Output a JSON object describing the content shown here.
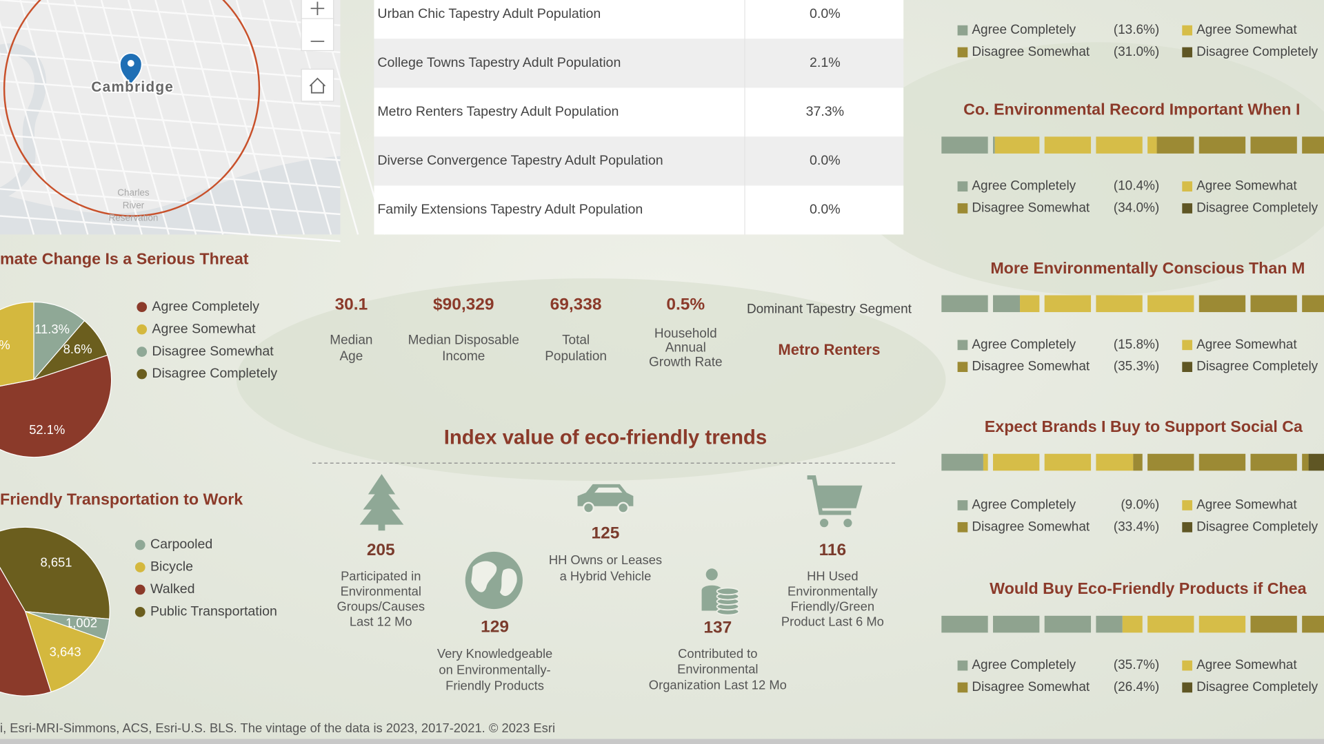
{
  "map": {
    "place_label": "Cambridge",
    "park_label": [
      "Charles",
      "River",
      "Reservation"
    ]
  },
  "table": {
    "rows": [
      [
        "Urban Chic Tapestry Adult Population",
        "0.0%"
      ],
      [
        "College Towns Tapestry Adult Population",
        "2.1%"
      ],
      [
        "Metro Renters Tapestry Adult Population",
        "37.3%"
      ],
      [
        "Diverse Convergence Tapestry Adult Population",
        "0.0%"
      ],
      [
        "Family Extensions Tapestry Adult Population",
        "0.0%"
      ]
    ]
  },
  "pies": [
    {
      "title": "mate Change Is a Serious Threat",
      "series": [
        {
          "name": "Agree Completely",
          "color": "#8b3a2a"
        },
        {
          "name": "Agree Somewhat",
          "color": "#d4b83e"
        },
        {
          "name": "Disagree Somewhat",
          "color": "#8fa896"
        },
        {
          "name": "Disagree Completely",
          "color": "#6b5e1e"
        }
      ],
      "values": [
        52.1,
        28.0,
        11.3,
        8.6
      ],
      "value_labels": [
        "52.1%",
        "%",
        "11.3%",
        "8.6%"
      ]
    },
    {
      "title": "Friendly Transportation to Work",
      "series": [
        {
          "name": "Carpooled",
          "color": "#8fa896"
        },
        {
          "name": "Bicycle",
          "color": "#d4b83e"
        },
        {
          "name": "Walked",
          "color": "#8b3a2a"
        },
        {
          "name": "Public Transportation",
          "color": "#6b5e1e"
        }
      ],
      "values": [
        1002,
        3643,
        11600,
        8651
      ],
      "value_labels": [
        "1,002",
        "3,643",
        null,
        "8,651"
      ]
    }
  ],
  "stats": [
    {
      "value": "30.1",
      "label": [
        "Median",
        "Age"
      ]
    },
    {
      "value": "$90,329",
      "label": [
        "Median Disposable",
        "Income"
      ]
    },
    {
      "value": "69,338",
      "label": [
        "Total",
        "Population"
      ]
    },
    {
      "value": "0.5%",
      "label": [
        "Household",
        "Annual",
        "Growth Rate"
      ]
    }
  ],
  "dominant": {
    "label": "Dominant Tapestry Segment",
    "value": "Metro Renters"
  },
  "trends": {
    "title": "Index value of eco-friendly trends",
    "items": [
      {
        "value": "205",
        "label": [
          "Participated in",
          "Environmental",
          "Groups/Causes",
          "Last 12 Mo"
        ]
      },
      {
        "value": "129",
        "label": [
          "Very Knowledgeable",
          "on Environmentally-",
          "Friendly Products"
        ]
      },
      {
        "value": "125",
        "label": [
          "HH Owns or Leases",
          "a Hybrid Vehicle"
        ]
      },
      {
        "value": "137",
        "label": [
          "Contributed to",
          "Environmental",
          "Organization Last 12 Mo"
        ]
      },
      {
        "value": "116",
        "label": [
          "HH Used",
          "Environmentally",
          "Friendly/Green",
          "Product Last 6 Mo"
        ]
      }
    ]
  },
  "surveys": {
    "legend": [
      "Agree Completely",
      "Agree Somewhat",
      "Disagree Somewhat",
      "Disagree Completely"
    ],
    "colors": [
      "#8fa38f",
      "#d6bd48",
      "#9c8a34",
      "#5f5624"
    ],
    "charts": [
      {
        "value_labels": [
          "(13.6%)",
          null,
          "(31.0%)",
          null
        ]
      },
      {
        "title": "Co. Environmental Record Important When I",
        "values": [
          10.4,
          31.6,
          34.0,
          23.6
        ],
        "value_labels": [
          "(10.4%)",
          null,
          "(34.0%)",
          null
        ]
      },
      {
        "title": "More Environmentally Conscious Than M",
        "values": [
          15.8,
          34.2,
          35.3,
          14.7
        ],
        "value_labels": [
          "(15.8%)",
          null,
          "(35.3%)",
          null
        ]
      },
      {
        "title": "Expect Brands I Buy to Support Social Ca",
        "values": [
          9.0,
          29.0,
          33.4,
          28.6
        ],
        "value_labels": [
          "(9.0%)",
          null,
          "(33.4%)",
          null
        ]
      },
      {
        "title": "Would Buy Eco-Friendly Products if Chea",
        "values": [
          35.7,
          24.3,
          26.4,
          13.6
        ],
        "value_labels": [
          "(35.7%)",
          null,
          "(26.4%)",
          null
        ]
      }
    ]
  },
  "footer": "i, Esri-MRI-Simmons, ACS, Esri-U.S. BLS. The vintage of the data is 2023, 2017-2021. © 2023 Esri"
}
